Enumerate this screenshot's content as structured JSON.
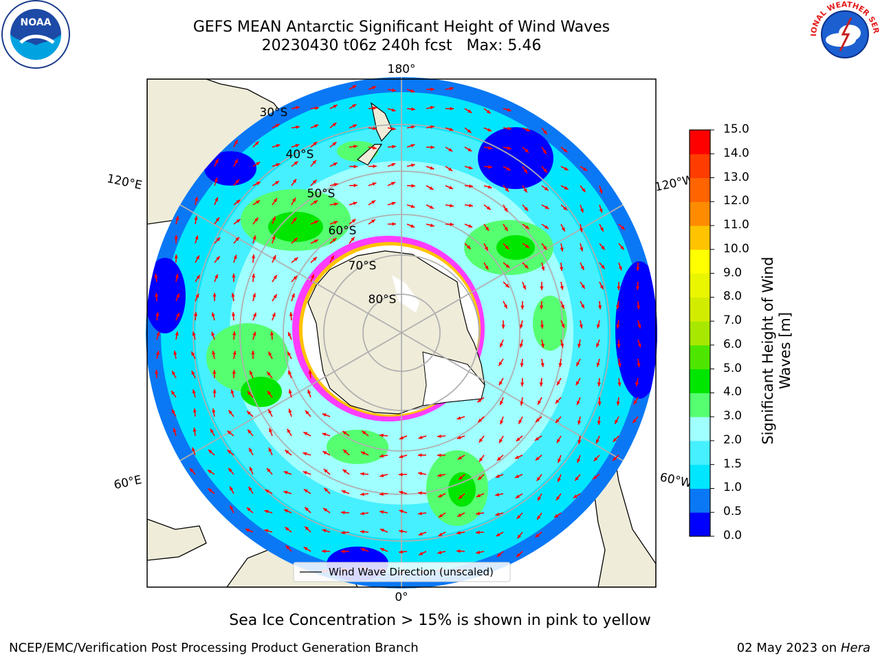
{
  "title": {
    "line1": "GEFS MEAN Antarctic Significant Height of Wind Waves",
    "line2": "20230430 t06z 240h fcst   Max: 5.46"
  },
  "map": {
    "projection": "south-polar-stereographic",
    "meridian_labels": {
      "top": "180°",
      "bottom": "0°",
      "upper_left": "120°E",
      "upper_right": "120°W",
      "lower_left": "60°E",
      "lower_right": "60°W"
    },
    "latitude_labels": [
      "30°S",
      "40°S",
      "50°S",
      "60°S",
      "70°S",
      "80°S"
    ],
    "legend_entry": "Wind Wave Direction (unscaled)"
  },
  "colorbar": {
    "title_line1": "Significant Height of Wind",
    "title_line2": "Waves [m]",
    "ticks": [
      "0.0",
      "0.5",
      "1.0",
      "1.5",
      "2.0",
      "3.0",
      "4.0",
      "5.0",
      "6.0",
      "7.0",
      "8.0",
      "9.0",
      "10.0",
      "11.0",
      "12.0",
      "13.0",
      "14.0",
      "15.0"
    ],
    "colors": [
      "#0000ff",
      "#0a78f5",
      "#00e6ff",
      "#46f0ff",
      "#a0ffff",
      "#55ff70",
      "#00e600",
      "#4ee600",
      "#a8e800",
      "#d2ec00",
      "#eaf500",
      "#ffff00",
      "#ffc300",
      "#ff8c00",
      "#ff6400",
      "#ff3c00",
      "#ff0000"
    ]
  },
  "legend_colors": {
    "land": "#efecd9",
    "ice_shelf": "#ffffff",
    "sea_ice": "#ff3cff",
    "arrows": "#ff0000",
    "grid": "#b0b0b0"
  },
  "caption": "Sea Ice Concentration > 15% is shown in pink to yellow",
  "footer": {
    "left": "NCEP/EMC/Verification Post Processing Product Generation Branch",
    "right_date": "02 May 2023 on",
    "right_host": "Hera"
  },
  "logos": {
    "noaa": "NOAA",
    "nws": "NATIONAL WEATHER SERVICE"
  }
}
